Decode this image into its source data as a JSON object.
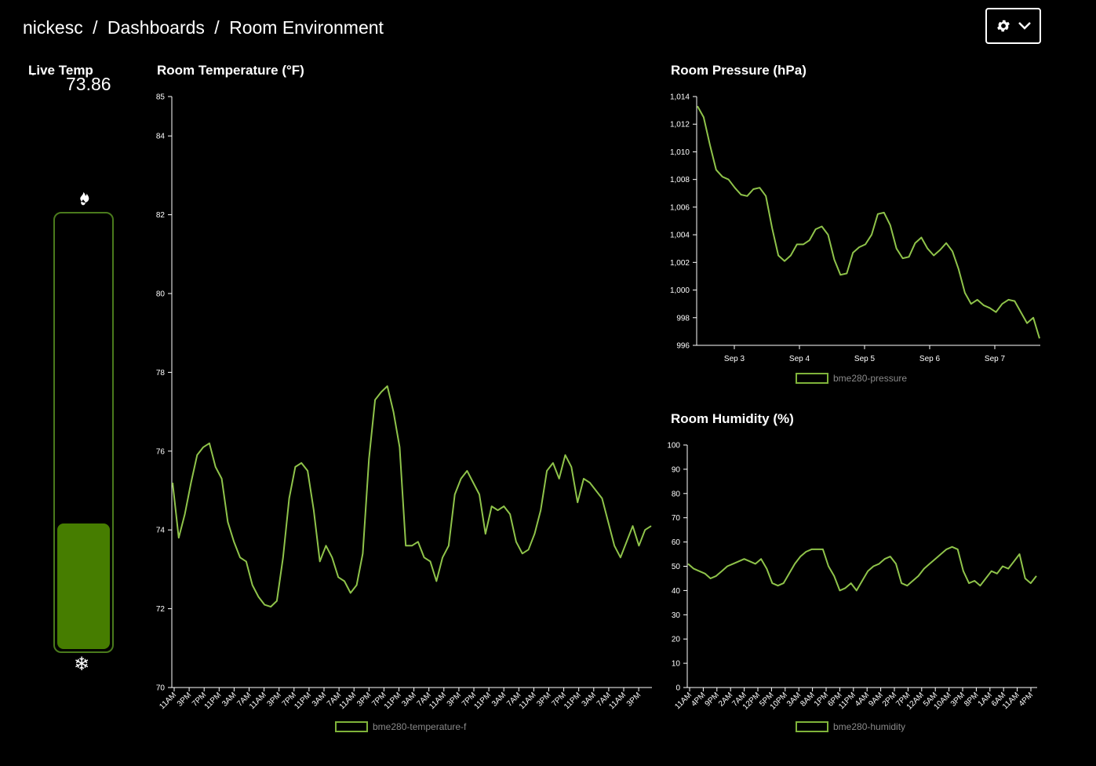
{
  "header": {
    "user": "nickesc",
    "section": "Dashboards",
    "title": "Room Environment",
    "separator": "/"
  },
  "settings": {
    "icon": "gear-icon",
    "chevron": "chevron-down-icon"
  },
  "live": {
    "label": "Live Temp",
    "degree": "°",
    "value": "73.86",
    "fill_fraction": 0.29,
    "hot_icon": "flame-icon",
    "cold_icon": "snowflake-icon",
    "fill_color": "#467d00",
    "border_color": "#4a7a1c"
  },
  "colors": {
    "line": "#8fc34a",
    "legend_text": "#8a8a8a"
  },
  "temperature": {
    "title": "Room Temperature (°F)",
    "legend": "bme280-temperature-f",
    "chart_data": {
      "type": "line",
      "ylim": [
        70,
        85
      ],
      "yticks": [
        70,
        72,
        74,
        76,
        78,
        80,
        82,
        84,
        85
      ],
      "xticks": [
        "11AM",
        "3PM",
        "7PM",
        "11PM",
        "3AM",
        "7AM",
        "11AM",
        "3PM",
        "7PM",
        "11PM",
        "3AM",
        "7AM",
        "11AM",
        "3PM",
        "7PM",
        "11PM",
        "3AM",
        "7AM",
        "11AM",
        "3PM",
        "7PM",
        "11PM",
        "3AM",
        "7AM",
        "11AM",
        "3PM",
        "7PM",
        "11PM",
        "3AM",
        "7AM",
        "11AM",
        "3PM"
      ],
      "values": [
        75.2,
        73.8,
        74.4,
        75.2,
        75.9,
        76.1,
        76.2,
        75.6,
        75.3,
        74.2,
        73.7,
        73.3,
        73.2,
        72.6,
        72.3,
        72.1,
        72.05,
        72.2,
        73.3,
        74.8,
        75.6,
        75.7,
        75.5,
        74.5,
        73.2,
        73.6,
        73.3,
        72.8,
        72.7,
        72.4,
        72.6,
        73.4,
        75.8,
        77.3,
        77.5,
        77.65,
        77.0,
        76.1,
        73.6,
        73.6,
        73.7,
        73.3,
        73.2,
        72.7,
        73.3,
        73.6,
        74.9,
        75.3,
        75.5,
        75.2,
        74.9,
        73.9,
        74.6,
        74.5,
        74.6,
        74.4,
        73.7,
        73.4,
        73.5,
        73.9,
        74.5,
        75.5,
        75.7,
        75.3,
        75.9,
        75.6,
        74.7,
        75.3,
        75.2,
        75.0,
        74.8,
        74.2,
        73.6,
        73.3,
        73.7,
        74.1,
        73.6,
        74.0,
        74.1
      ]
    }
  },
  "pressure": {
    "title": "Room Pressure (hPa)",
    "legend": "bme280-pressure",
    "chart_data": {
      "type": "line",
      "ylim": [
        996,
        1014
      ],
      "yticks": [
        "996",
        "998",
        "1,000",
        "1,002",
        "1,004",
        "1,006",
        "1,008",
        "1,010",
        "1,012",
        "1,014"
      ],
      "xticks": [
        "Sep 3",
        "Sep 4",
        "Sep 5",
        "Sep 6",
        "Sep 7"
      ],
      "values": [
        1013.3,
        1012.5,
        1010.5,
        1008.7,
        1008.2,
        1008.0,
        1007.4,
        1006.9,
        1006.8,
        1007.3,
        1007.4,
        1006.8,
        1004.5,
        1002.5,
        1002.1,
        1002.5,
        1003.3,
        1003.3,
        1003.6,
        1004.4,
        1004.6,
        1004.0,
        1002.2,
        1001.1,
        1001.2,
        1002.7,
        1003.1,
        1003.3,
        1004.0,
        1005.5,
        1005.6,
        1004.7,
        1003.0,
        1002.3,
        1002.4,
        1003.4,
        1003.8,
        1003.0,
        1002.5,
        1002.9,
        1003.4,
        1002.8,
        1001.5,
        999.8,
        999.0,
        999.3,
        998.9,
        998.7,
        998.4,
        999.0,
        999.3,
        999.2,
        998.4,
        997.6,
        998.0,
        996.5
      ]
    }
  },
  "humidity": {
    "title": "Room Humidity (%)",
    "legend": "bme280-humidity",
    "chart_data": {
      "type": "line",
      "ylim": [
        0,
        100
      ],
      "yticks": [
        0,
        10,
        20,
        30,
        40,
        50,
        60,
        70,
        80,
        90,
        100
      ],
      "xticks": [
        "11AM",
        "4PM",
        "9PM",
        "2AM",
        "7AM",
        "12PM",
        "5PM",
        "10PM",
        "3AM",
        "8AM",
        "1PM",
        "6PM",
        "11PM",
        "4AM",
        "9AM",
        "2PM",
        "7PM",
        "12AM",
        "5AM",
        "10AM",
        "3PM",
        "8PM",
        "1AM",
        "6AM",
        "11AM",
        "4PM"
      ],
      "values": [
        51,
        49,
        48,
        47,
        45,
        46,
        48,
        50,
        51,
        52,
        53,
        52,
        51,
        53,
        49,
        43,
        42,
        43,
        47,
        51,
        54,
        56,
        57,
        57,
        57,
        50,
        46,
        40,
        41,
        43,
        40,
        44,
        48,
        50,
        51,
        53,
        54,
        51,
        43,
        42,
        44,
        46,
        49,
        51,
        53,
        55,
        57,
        58,
        57,
        48,
        43,
        44,
        42,
        45,
        48,
        47,
        50,
        49,
        52,
        55,
        45,
        43,
        46
      ]
    }
  }
}
